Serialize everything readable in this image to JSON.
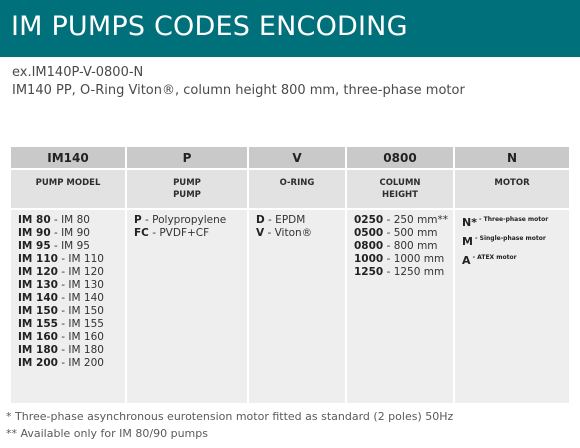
{
  "title": "IM PUMPS CODES ENCODING",
  "example": {
    "code": "ex.IM140P-V-0800-N",
    "description": "IM140 PP, O-Ring Viton®, column height 800 mm, three-phase motor"
  },
  "columns": [
    {
      "code": "IM140",
      "label": "PUMP MODEL",
      "items": [
        {
          "code": "IM 80",
          "desc": " - IM 80"
        },
        {
          "code": "IM 90",
          "desc": " - IM 90"
        },
        {
          "code": "IM 95",
          "desc": " - IM 95"
        },
        {
          "code": "IM 110",
          "desc": " - IM 110"
        },
        {
          "code": "IM 120",
          "desc": " - IM 120"
        },
        {
          "code": "IM 130",
          "desc": " - IM 130"
        },
        {
          "code": "IM 140",
          "desc": " - IM 140"
        },
        {
          "code": "IM 150",
          "desc": " - IM 150"
        },
        {
          "code": "IM 155",
          "desc": " - IM 155"
        },
        {
          "code": "IM 160",
          "desc": " - IM 160"
        },
        {
          "code": "IM 180",
          "desc": " - IM 180"
        },
        {
          "code": "IM 200",
          "desc": " - IM 200"
        }
      ]
    },
    {
      "code": "P",
      "label_line1": "PUMP",
      "label_line2": "PUMP",
      "items": [
        {
          "code": "P",
          "desc": " - Polypropylene"
        },
        {
          "code": "FC",
          "desc": " - PVDF+CF"
        }
      ]
    },
    {
      "code": "V",
      "label": "O-RING",
      "items": [
        {
          "code": "D",
          "desc": " - EPDM"
        },
        {
          "code": "V",
          "desc": " - Viton®"
        }
      ]
    },
    {
      "code": "0800",
      "label_line1": "COLUMN",
      "label_line2": "HEIGHT",
      "items": [
        {
          "code": "0250",
          "desc": " - 250 mm**"
        },
        {
          "code": "0500",
          "desc": " - 500 mm"
        },
        {
          "code": "0800",
          "desc": " - 800 mm"
        },
        {
          "code": "1000",
          "desc": " - 1000 mm"
        },
        {
          "code": "1250",
          "desc": " - 1250 mm"
        }
      ]
    },
    {
      "code": "N",
      "label": "MOTOR",
      "items": [
        {
          "code": "N*",
          "desc": " - Three-phase motor"
        },
        {
          "code": "M",
          "desc": " - Single-phase motor"
        },
        {
          "code": "A",
          "desc": " - ATEX motor"
        }
      ]
    }
  ],
  "footnotes": [
    "* Three-phase asynchronous eurotension motor fitted as standard (2 poles) 50Hz",
    "** Available only for IM 80/90 pumps"
  ]
}
